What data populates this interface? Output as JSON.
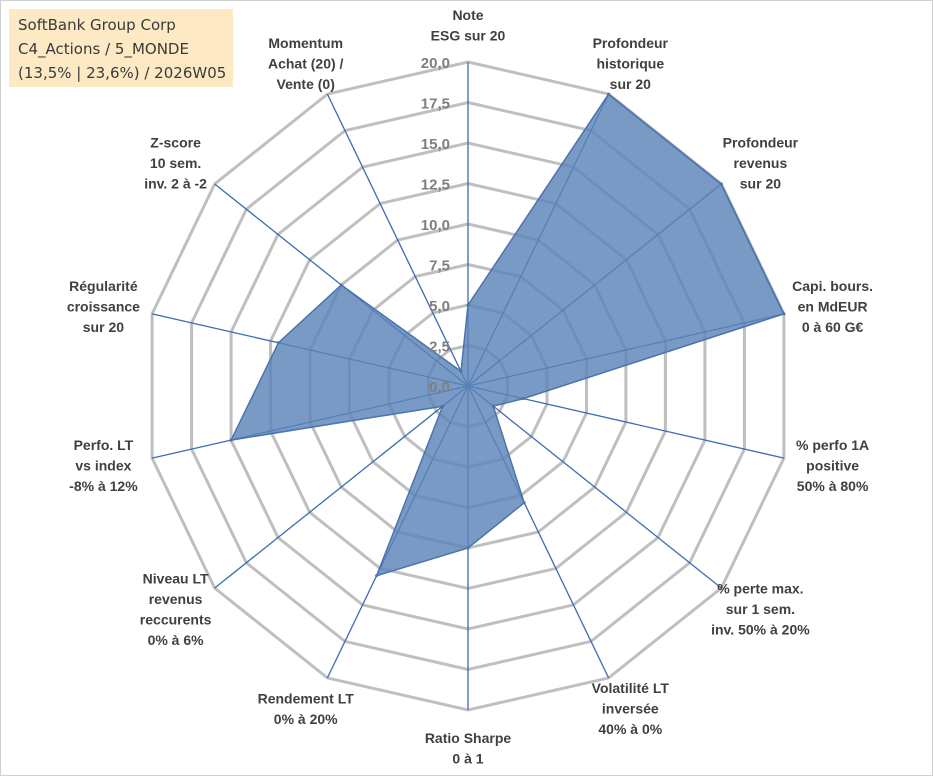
{
  "title_box": {
    "line1": "SoftBank Group Corp",
    "line2": "C4_Actions / 5_MONDE",
    "line3": "(13,5% | 23,6%) / 2026W05"
  },
  "colors": {
    "fill": "#5b84b8",
    "spoke": "#3a6bb5",
    "grid": "#bfbfbf",
    "title_bg": "#fde9c4"
  },
  "chart_data": {
    "type": "radar",
    "title": "SoftBank Group Corp",
    "rmin": 0,
    "rmax": 20,
    "step": 2.5,
    "tick_labels": [
      "0,0",
      "2,5",
      "5,0",
      "7,5",
      "10,0",
      "12,5",
      "15,0",
      "17,5",
      "20,0"
    ],
    "axes": [
      {
        "label": [
          "Note",
          "ESG sur 20"
        ],
        "value": 5
      },
      {
        "label": [
          "Profondeur",
          "historique",
          "sur 20"
        ],
        "value": 20
      },
      {
        "label": [
          "Profondeur",
          "revenus",
          "sur 20"
        ],
        "value": 20
      },
      {
        "label": [
          "Capi. bours.",
          "en MdEUR",
          "0 à 60 G€"
        ],
        "value": 20
      },
      {
        "label": [
          "% perfo 1A",
          "positive",
          "50% à 80%"
        ],
        "value": 3.5
      },
      {
        "label": [
          "% perte max.",
          "sur 1 sem.",
          "inv. 50% à 20%"
        ],
        "value": 2
      },
      {
        "label": [
          "Volatilité LT",
          "inversée",
          "40% à 0%"
        ],
        "value": 8
      },
      {
        "label": [
          "Ratio Sharpe",
          "0 à 1"
        ],
        "value": 10
      },
      {
        "label": [
          "Rendement LT",
          "0% à 20%"
        ],
        "value": 13
      },
      {
        "label": [
          "Niveau LT",
          "revenus",
          "reccurents",
          "0% à 6%"
        ],
        "value": 2
      },
      {
        "label": [
          "Perfo. LT",
          "vs index",
          "-8% à 12%"
        ],
        "value": 15
      },
      {
        "label": [
          "Régularité",
          "croissance",
          "sur 20"
        ],
        "value": 12
      },
      {
        "label": [
          "Z-score",
          "10 sem.",
          "inv. 2 à -2"
        ],
        "value": 10
      },
      {
        "label": [
          "Momentum",
          "Achat (20) /",
          "Vente (0)"
        ],
        "value": 1
      }
    ]
  }
}
